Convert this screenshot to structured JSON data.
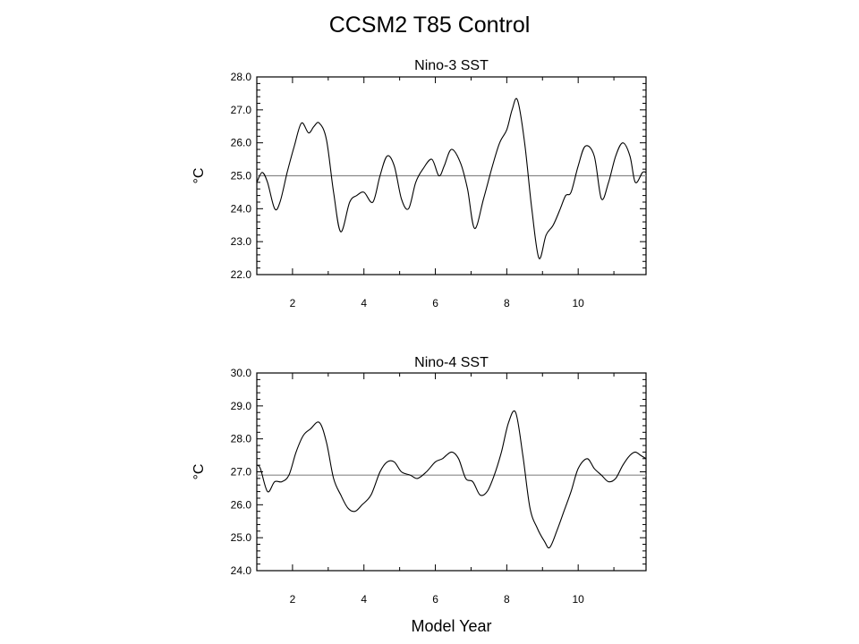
{
  "title": "CCSM2 T85 Control",
  "chart_data": [
    {
      "type": "line",
      "title": "Nino-3 SST",
      "ylabel": "°C",
      "xlabel": "",
      "xlim": [
        1,
        11.9
      ],
      "ylim": [
        22.0,
        28.0
      ],
      "x_ticks": [
        2,
        4,
        6,
        8,
        10
      ],
      "x_tick_labels": [
        "2",
        "4",
        "6",
        "8",
        "10"
      ],
      "y_ticks": [
        22.0,
        23.0,
        24.0,
        25.0,
        26.0,
        27.0,
        28.0
      ],
      "y_tick_labels": [
        "22.0",
        "23.0",
        "24.0",
        "25.0",
        "26.0",
        "27.0",
        "28.0"
      ],
      "reference_line": 25.0,
      "grid": false,
      "series": [
        {
          "x": [
            1.0,
            1.15,
            1.3,
            1.5,
            1.65,
            1.85,
            2.05,
            2.25,
            2.45,
            2.6,
            2.75,
            2.95,
            3.15,
            3.35,
            3.6,
            3.8,
            4.0,
            4.25,
            4.45,
            4.65,
            4.85,
            5.05,
            5.25,
            5.45,
            5.65,
            5.9,
            6.1,
            6.25,
            6.45,
            6.7,
            6.9,
            7.1,
            7.35,
            7.6,
            7.8,
            8.0,
            8.15,
            8.3,
            8.5,
            8.7,
            8.9,
            9.1,
            9.3,
            9.5,
            9.65,
            9.8,
            10.0,
            10.2,
            10.45,
            10.65,
            10.85,
            11.05,
            11.25,
            11.45,
            11.6,
            11.8,
            11.9
          ],
          "y": [
            24.8,
            25.1,
            24.8,
            24.0,
            24.2,
            25.1,
            25.9,
            26.6,
            26.3,
            26.5,
            26.6,
            26.1,
            24.5,
            23.3,
            24.2,
            24.4,
            24.5,
            24.2,
            25.0,
            25.6,
            25.3,
            24.3,
            24.0,
            24.8,
            25.2,
            25.5,
            25.0,
            25.3,
            25.8,
            25.4,
            24.6,
            23.4,
            24.3,
            25.3,
            26.0,
            26.4,
            27.0,
            27.3,
            26.0,
            24.0,
            22.5,
            23.2,
            23.5,
            24.0,
            24.4,
            24.5,
            25.3,
            25.9,
            25.6,
            24.3,
            24.8,
            25.6,
            26.0,
            25.6,
            24.8,
            25.1,
            25.1
          ]
        }
      ]
    },
    {
      "type": "line",
      "title": "Nino-4 SST",
      "ylabel": "°C",
      "xlabel": "Model Year",
      "xlim": [
        1,
        11.9
      ],
      "ylim": [
        24.0,
        30.0
      ],
      "x_ticks": [
        2,
        4,
        6,
        8,
        10
      ],
      "x_tick_labels": [
        "2",
        "4",
        "6",
        "8",
        "10"
      ],
      "y_ticks": [
        24.0,
        25.0,
        26.0,
        27.0,
        28.0,
        29.0,
        30.0
      ],
      "y_tick_labels": [
        "24.0",
        "25.0",
        "26.0",
        "27.0",
        "28.0",
        "29.0",
        "30.0"
      ],
      "reference_line": 26.9,
      "grid": false,
      "series": [
        {
          "x": [
            1.0,
            1.1,
            1.3,
            1.5,
            1.7,
            1.9,
            2.1,
            2.3,
            2.5,
            2.75,
            2.95,
            3.15,
            3.35,
            3.55,
            3.75,
            3.95,
            4.2,
            4.45,
            4.65,
            4.85,
            5.05,
            5.3,
            5.5,
            5.75,
            6.0,
            6.2,
            6.45,
            6.65,
            6.85,
            7.05,
            7.25,
            7.45,
            7.65,
            7.85,
            8.05,
            8.25,
            8.45,
            8.65,
            8.85,
            9.05,
            9.2,
            9.4,
            9.6,
            9.8,
            10.0,
            10.25,
            10.45,
            10.65,
            10.85,
            11.05,
            11.25,
            11.45,
            11.6,
            11.75,
            11.9
          ],
          "y": [
            27.2,
            27.1,
            26.4,
            26.7,
            26.7,
            26.9,
            27.6,
            28.1,
            28.3,
            28.5,
            27.9,
            26.8,
            26.3,
            25.9,
            25.8,
            26.0,
            26.3,
            27.0,
            27.3,
            27.3,
            27.0,
            26.9,
            26.8,
            27.0,
            27.3,
            27.4,
            27.6,
            27.4,
            26.8,
            26.7,
            26.3,
            26.4,
            26.9,
            27.6,
            28.5,
            28.8,
            27.5,
            25.9,
            25.3,
            24.9,
            24.7,
            25.2,
            25.8,
            26.4,
            27.1,
            27.4,
            27.1,
            26.9,
            26.7,
            26.8,
            27.2,
            27.5,
            27.6,
            27.5,
            27.4
          ]
        }
      ]
    }
  ]
}
